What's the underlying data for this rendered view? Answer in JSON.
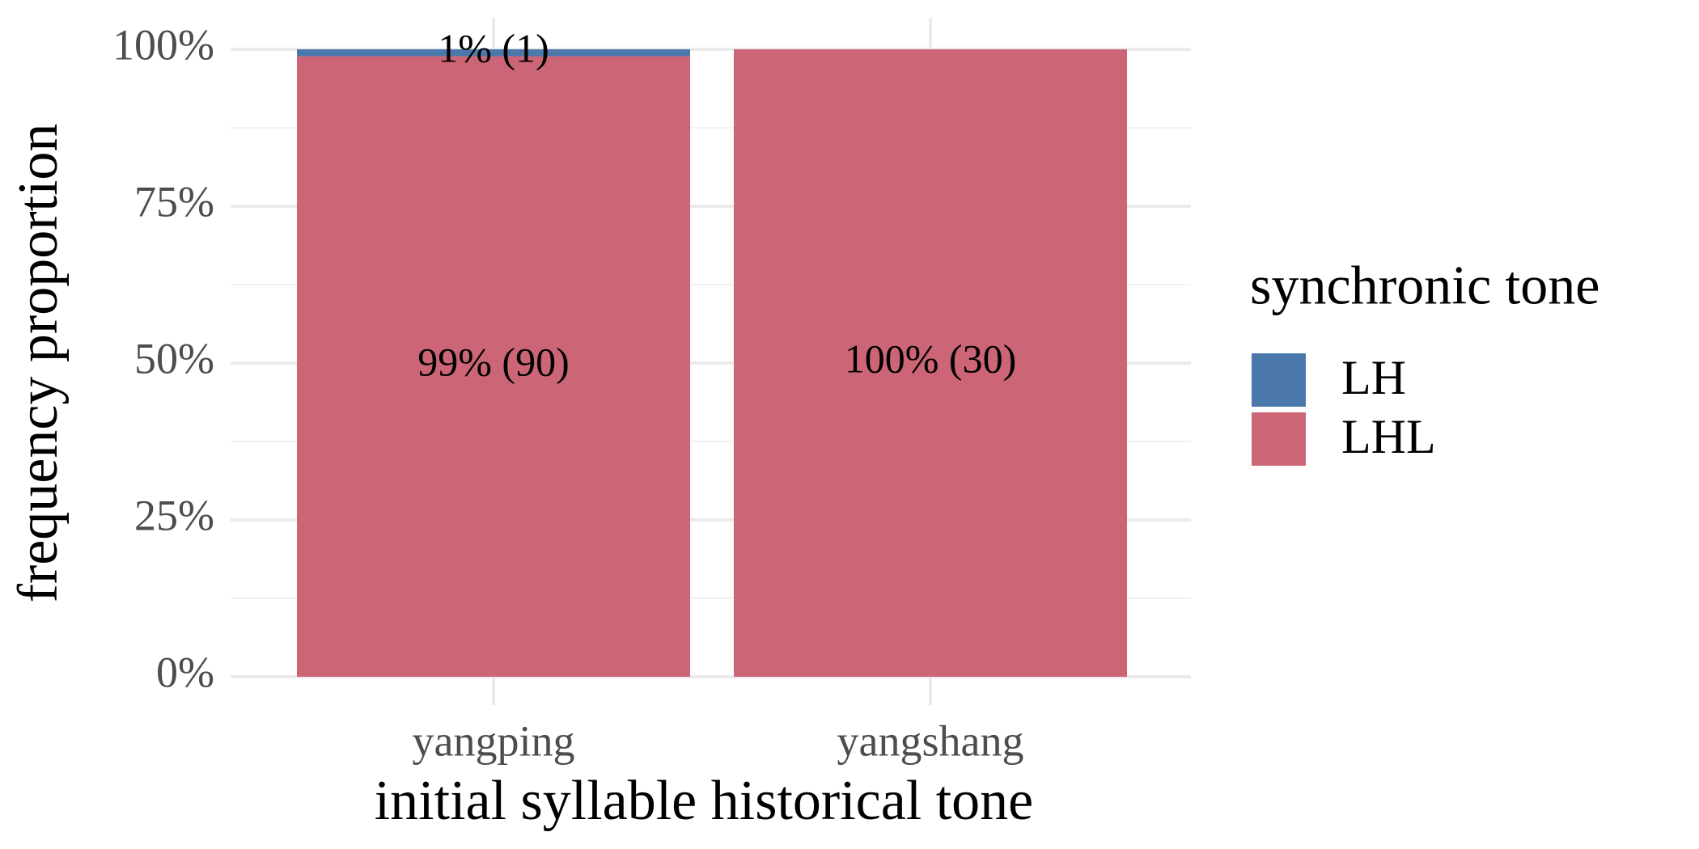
{
  "chart_data": {
    "type": "stacked_bar",
    "x_label": "initial syllable historical tone",
    "y_label": "frequency proportion",
    "categories": [
      "yangping",
      "yangshang"
    ],
    "series": [
      {
        "name": "LH",
        "color": "#4a78ab",
        "values": [
          1.1,
          0
        ],
        "value_labels": [
          "1% (1)",
          null
        ]
      },
      {
        "name": "LHL",
        "color": "#cc6677",
        "values": [
          98.9,
          100
        ],
        "value_labels": [
          "99% (90)",
          "100% (30)"
        ]
      }
    ],
    "ylim": [
      0,
      100
    ],
    "yticks": [
      {
        "value": 0,
        "label": "0%"
      },
      {
        "value": 25,
        "label": "25%"
      },
      {
        "value": 50,
        "label": "50%"
      },
      {
        "value": 75,
        "label": "75%"
      },
      {
        "value": 100,
        "label": "100%"
      }
    ],
    "grid": true,
    "legend": {
      "title": "synchronic tone",
      "position": "right"
    }
  }
}
